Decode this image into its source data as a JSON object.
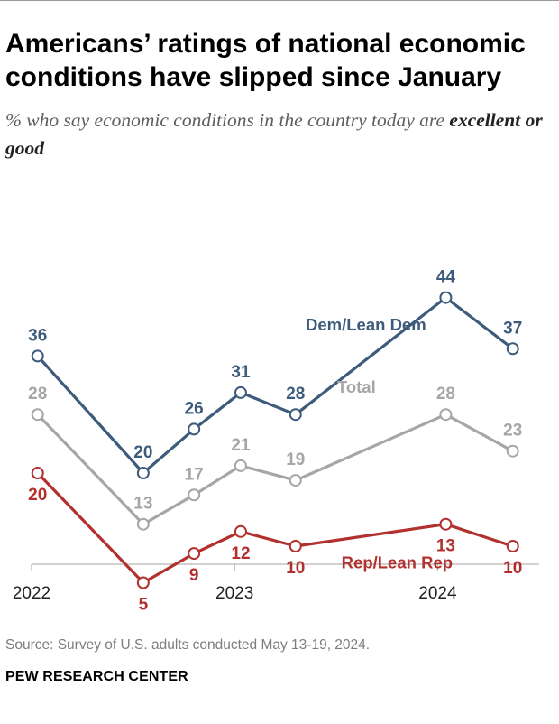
{
  "header": {
    "title": "Americans’ ratings of national economic conditions have slipped since January",
    "subtitle_prefix": "% who say economic conditions in the country today are ",
    "subtitle_emphasis": "excellent or good"
  },
  "footer": {
    "source": "Source: Survey of U.S. adults conducted May 13-19, 2024.",
    "organization": "PEW RESEARCH CENTER"
  },
  "chart_data": {
    "type": "line",
    "title": "Americans’ ratings of national economic conditions have slipped since January",
    "subtitle": "% who say economic conditions in the country today are excellent or good",
    "xlabel": "",
    "ylabel": "",
    "x_ticks": [
      2022,
      2023,
      2024
    ],
    "x_tick_labels": [
      "2022",
      "2023",
      "2024"
    ],
    "xlim": [
      2022.0,
      2024.5
    ],
    "ylim": [
      0,
      50
    ],
    "grid": false,
    "x": [
      2022.03,
      2022.55,
      2022.8,
      2023.03,
      2023.3,
      2024.04,
      2024.37
    ],
    "colors": {
      "dem": "#3d5c7c",
      "total": "#a6a6a6",
      "rep": "#b2302d",
      "axis": "#b8b8b8",
      "tick_label": "#222222"
    },
    "series": [
      {
        "key": "dem",
        "name": "Dem/Lean Dem",
        "values": [
          36,
          20,
          26,
          31,
          28,
          44,
          37
        ]
      },
      {
        "key": "total",
        "name": "Total",
        "values": [
          28,
          13,
          17,
          21,
          19,
          28,
          23
        ]
      },
      {
        "key": "rep",
        "name": "Rep/Lean Rep",
        "values": [
          20,
          5,
          9,
          12,
          10,
          13,
          10
        ]
      }
    ]
  }
}
